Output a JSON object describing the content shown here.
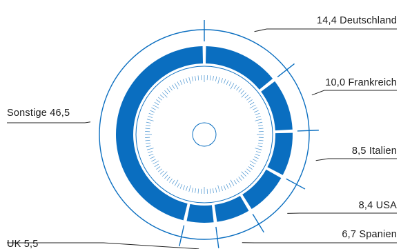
{
  "chart_data": {
    "type": "pie",
    "style": "donut",
    "unit": "%",
    "categories": [
      "Deutschland",
      "Frankreich",
      "Italien",
      "USA",
      "Spanien",
      "UK",
      "Sonstige"
    ],
    "values": [
      14.4,
      10.0,
      8.5,
      8.4,
      6.7,
      5.5,
      46.5
    ],
    "value_labels": [
      "14,4",
      "10,0",
      "8,5",
      "8,4",
      "6,7",
      "5,5",
      "46,5"
    ],
    "label_text": [
      "14,4 Deutschland",
      "10,0 Frankreich",
      "8,5 Italien",
      "8,4 USA",
      "6,7 Spanien",
      "UK 5,5",
      "Sonstige 46,5"
    ],
    "colors": {
      "segment": "#0a6ec0",
      "outline": "#0a6ec0",
      "background": "#ffffff",
      "leader": "#222222"
    }
  }
}
